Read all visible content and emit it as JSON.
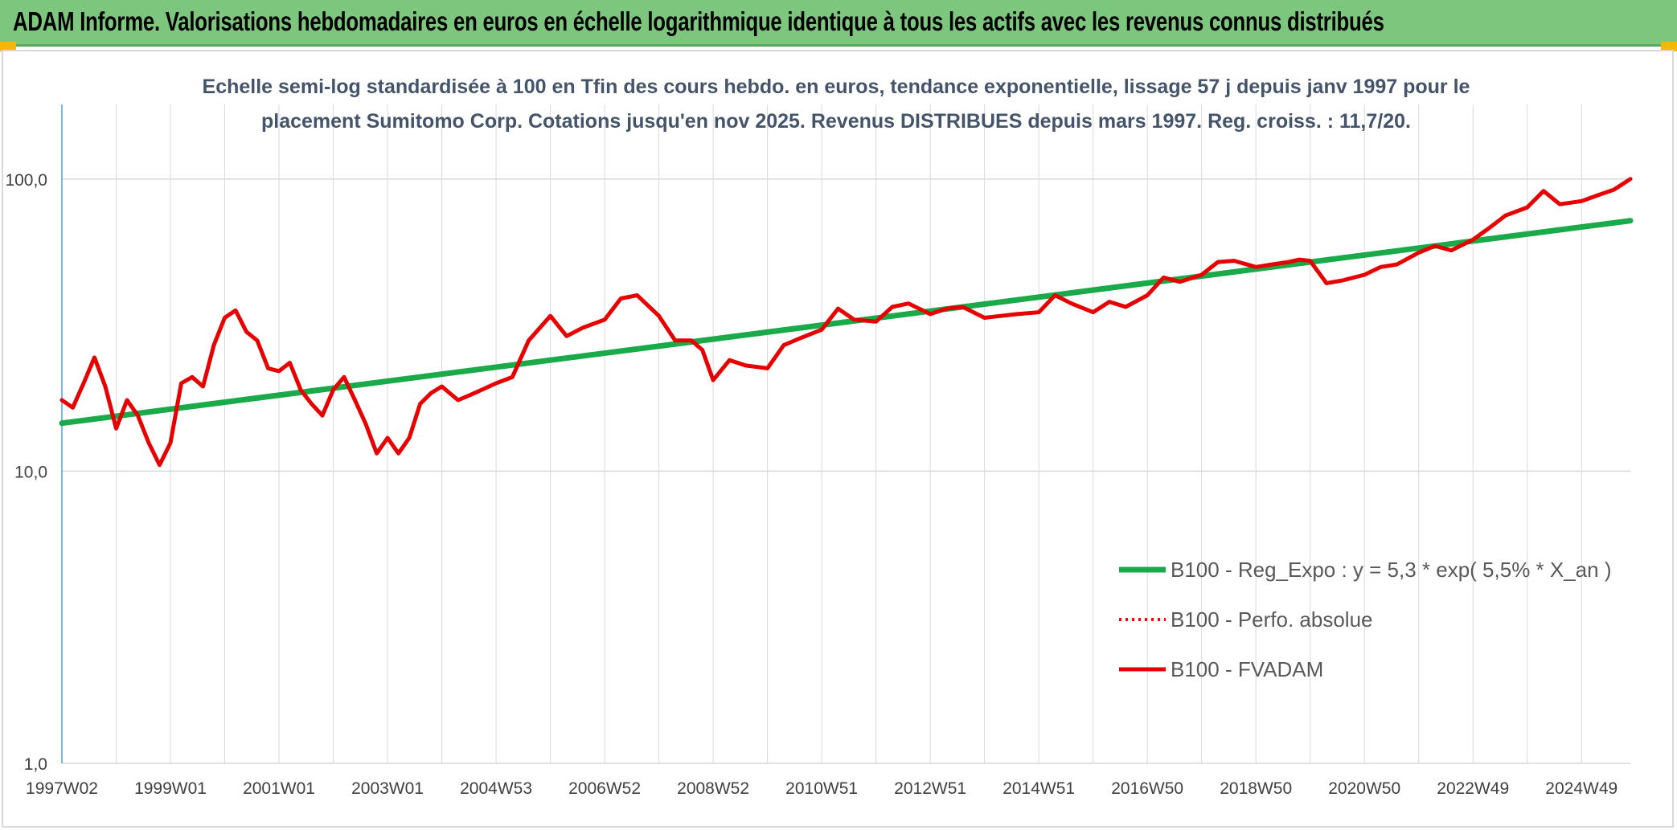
{
  "header": {
    "title": "ADAM Informe. Valorisations hebdomadaires en euros en échelle logarithmique identique à tous les actifs avec les revenus connus distribués"
  },
  "colors": {
    "header_bg": "#7dc67d",
    "trend_line": "#1aaa4a",
    "perf_line": "#ff0000",
    "fvadam_line": "#e60000",
    "grid": "#d9d9d9"
  },
  "chart_data": {
    "type": "line",
    "title_lines": [
      "Echelle semi-log standardisée à 100 en Tfin des cours hebdo. en euros, tendance exponentielle, lissage 57 j depuis janv 1997 pour le",
      "placement Sumitomo Corp. Cotations jusqu'en nov 2025. Revenus DISTRIBUES depuis mars 1997. Reg. croiss. : 11,7/20."
    ],
    "y_scale": "log",
    "ylim": [
      1,
      180
    ],
    "xlim": [
      1997.0,
      2025.9
    ],
    "y_ticks": [
      {
        "value": 1,
        "label": "1,0"
      },
      {
        "value": 10,
        "label": "10,0"
      },
      {
        "value": 100,
        "label": "100,0"
      }
    ],
    "x_ticks": [
      {
        "value": 1997.0,
        "label": "1997W02"
      },
      {
        "value": 1999.0,
        "label": "1999W01"
      },
      {
        "value": 2001.0,
        "label": "2001W01"
      },
      {
        "value": 2003.0,
        "label": "2003W01"
      },
      {
        "value": 2005.0,
        "label": "2004W53"
      },
      {
        "value": 2007.0,
        "label": "2006W52"
      },
      {
        "value": 2009.0,
        "label": "2008W52"
      },
      {
        "value": 2011.0,
        "label": "2010W51"
      },
      {
        "value": 2013.0,
        "label": "2012W51"
      },
      {
        "value": 2015.0,
        "label": "2014W51"
      },
      {
        "value": 2017.0,
        "label": "2016W50"
      },
      {
        "value": 2019.0,
        "label": "2018W50"
      },
      {
        "value": 2021.0,
        "label": "2020W50"
      },
      {
        "value": 2023.0,
        "label": "2022W49"
      },
      {
        "value": 2025.0,
        "label": "2024W49"
      }
    ],
    "grid": true,
    "legend_position": "bottom-right",
    "series": [
      {
        "name": "B100 - Reg_Expo : y = 5,3 * exp( 5,5% *  X_an )",
        "style": "solid-thick",
        "color": "#1aaa4a",
        "x": [
          1997.0,
          2025.9
        ],
        "y": [
          14.6,
          72.0
        ]
      },
      {
        "name": "B100 - Perfo. absolue",
        "style": "dotted",
        "color": "#ff0000",
        "x": [],
        "y": []
      },
      {
        "name": "B100 - FVADAM",
        "style": "solid",
        "color": "#e60000",
        "x": [
          1997.0,
          1997.2,
          1997.4,
          1997.6,
          1997.8,
          1998.0,
          1998.2,
          1998.4,
          1998.6,
          1998.8,
          1999.0,
          1999.2,
          1999.4,
          1999.6,
          1999.8,
          2000.0,
          2000.2,
          2000.4,
          2000.6,
          2000.8,
          2001.0,
          2001.2,
          2001.4,
          2001.6,
          2001.8,
          2002.0,
          2002.2,
          2002.4,
          2002.6,
          2002.8,
          2003.0,
          2003.2,
          2003.4,
          2003.6,
          2003.8,
          2004.0,
          2004.3,
          2004.6,
          2005.0,
          2005.3,
          2005.6,
          2006.0,
          2006.3,
          2006.6,
          2007.0,
          2007.3,
          2007.6,
          2008.0,
          2008.3,
          2008.6,
          2008.8,
          2009.0,
          2009.3,
          2009.6,
          2010.0,
          2010.3,
          2010.6,
          2011.0,
          2011.3,
          2011.6,
          2012.0,
          2012.3,
          2012.6,
          2013.0,
          2013.3,
          2013.6,
          2014.0,
          2014.3,
          2014.6,
          2015.0,
          2015.3,
          2015.6,
          2016.0,
          2016.3,
          2016.6,
          2017.0,
          2017.3,
          2017.6,
          2018.0,
          2018.3,
          2018.6,
          2019.0,
          2019.3,
          2019.6,
          2019.8,
          2020.0,
          2020.3,
          2020.6,
          2021.0,
          2021.3,
          2021.6,
          2022.0,
          2022.3,
          2022.6,
          2023.0,
          2023.3,
          2023.6,
          2024.0,
          2024.3,
          2024.6,
          2025.0,
          2025.3,
          2025.6,
          2025.9
        ],
        "y": [
          17.5,
          16.5,
          20.0,
          24.5,
          19.5,
          14.0,
          17.5,
          15.5,
          12.5,
          10.5,
          12.5,
          20.0,
          21.0,
          19.5,
          27.0,
          33.5,
          35.5,
          30.0,
          28.0,
          22.5,
          22.0,
          23.5,
          19.0,
          17.0,
          15.5,
          19.0,
          21.0,
          17.5,
          14.5,
          11.5,
          13.0,
          11.5,
          13.0,
          17.0,
          18.5,
          19.5,
          17.5,
          18.5,
          20.0,
          21.0,
          28.0,
          34.0,
          29.0,
          31.0,
          33.0,
          39.0,
          40.0,
          34.0,
          28.0,
          28.0,
          26.0,
          20.5,
          24.0,
          23.0,
          22.5,
          27.0,
          28.5,
          30.5,
          36.0,
          33.0,
          32.5,
          36.5,
          37.5,
          34.5,
          36.0,
          36.5,
          33.5,
          34.0,
          34.5,
          35.0,
          40.0,
          37.5,
          35.0,
          38.0,
          36.5,
          40.0,
          46.0,
          44.5,
          47.0,
          52.0,
          52.5,
          50.0,
          51.0,
          52.0,
          53.0,
          52.5,
          44.0,
          45.0,
          47.0,
          50.0,
          51.0,
          56.0,
          59.0,
          57.0,
          62.0,
          68.0,
          75.0,
          80.0,
          91.0,
          82.0,
          84.0,
          88.0,
          92.0,
          100.0
        ]
      }
    ]
  }
}
